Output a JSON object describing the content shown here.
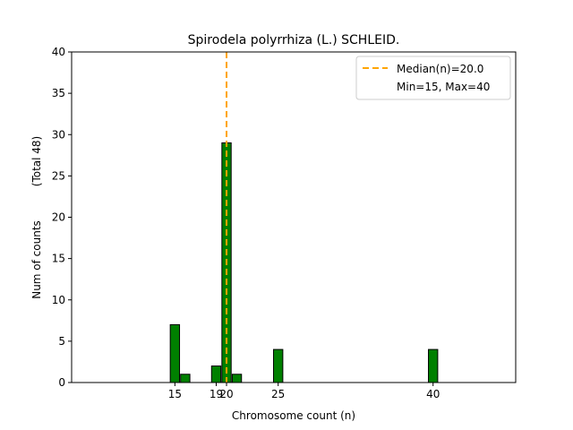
{
  "chart_data": {
    "type": "bar",
    "title": "Spirodela polyrrhiza (L.) SCHLEID.",
    "xlabel": "Chromosome count (n)",
    "ylabel_left": "Num of counts",
    "ylabel_right": "(Total 48)",
    "xlim": [
      5,
      48
    ],
    "ylim": [
      0,
      40
    ],
    "yticks": [
      0,
      5,
      10,
      15,
      20,
      25,
      30,
      35,
      40
    ],
    "xticks": [
      15,
      19,
      20,
      25,
      40
    ],
    "bar_color": "#008000",
    "bar_edge_color": "#000000",
    "bars": [
      {
        "x": 15,
        "value": 7
      },
      {
        "x": 16,
        "value": 1
      },
      {
        "x": 19,
        "value": 2
      },
      {
        "x": 20,
        "value": 29
      },
      {
        "x": 21,
        "value": 1
      },
      {
        "x": 25,
        "value": 4
      },
      {
        "x": 40,
        "value": 4
      }
    ],
    "median": {
      "value": 20.0,
      "color": "#FFA500",
      "label": "Median(n)=20.0"
    },
    "minmax_label": "Min=15, Max=40",
    "legend_position": "top-right"
  }
}
